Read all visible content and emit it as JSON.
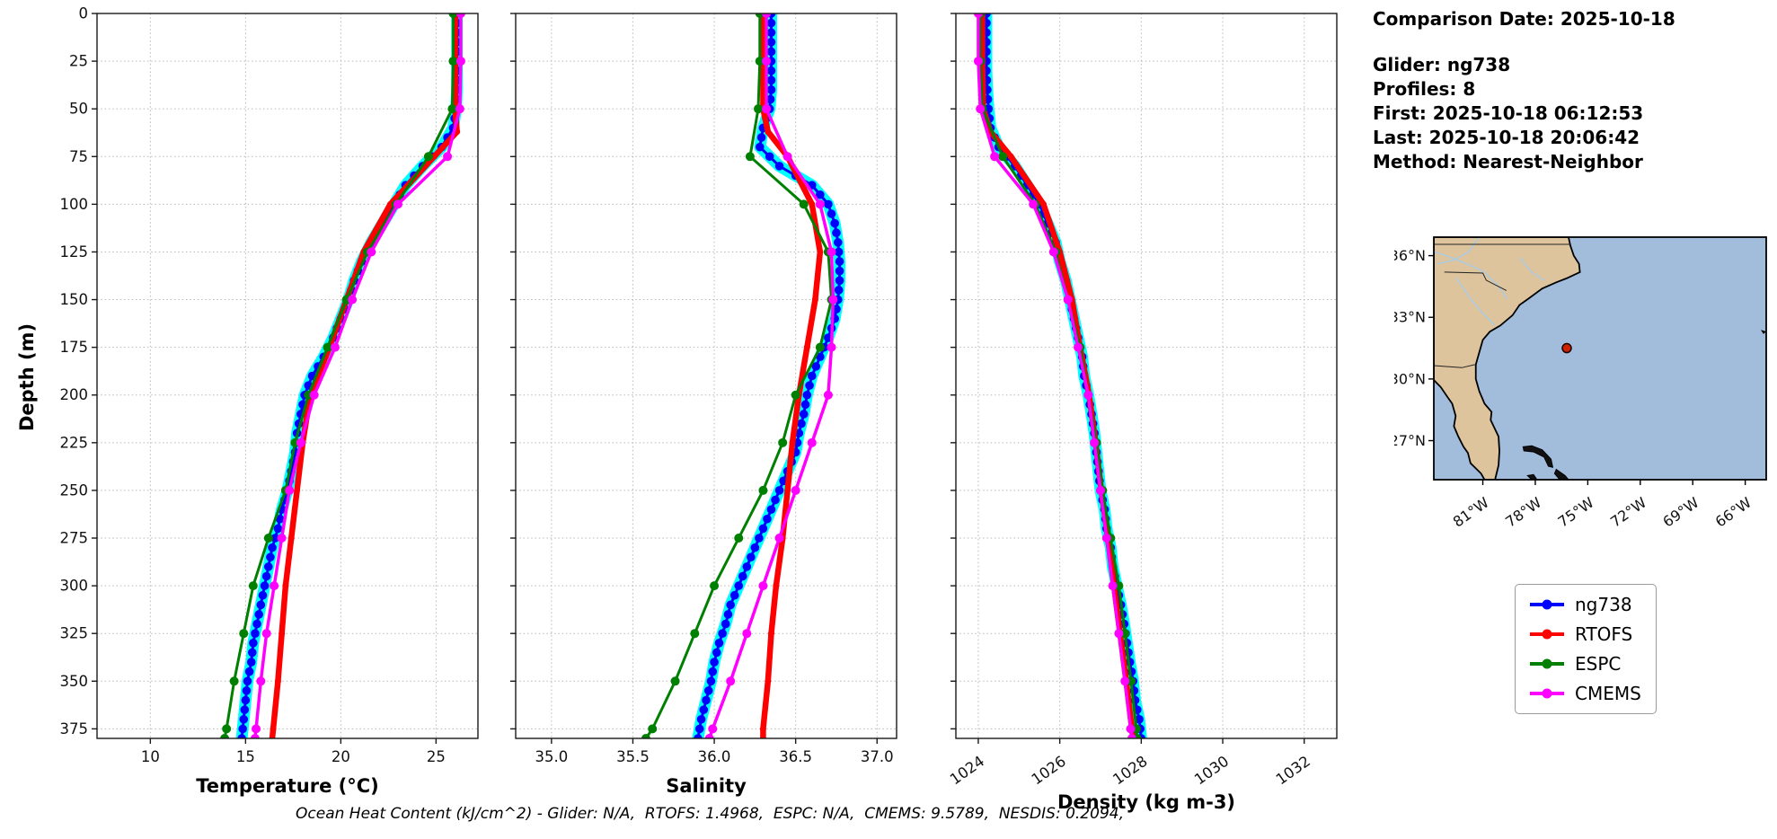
{
  "info": {
    "comparison_date": "Comparison Date: 2025-10-18",
    "glider": "Glider: ng738",
    "profiles": "Profiles: 8",
    "first": "First: 2025-10-18 06:12:53",
    "last": "Last: 2025-10-18 20:06:42",
    "method": "Method: Nearest-Neighbor"
  },
  "caption": "Ocean Heat Content (kJ/cm^2) - Glider: N/A,  RTOFS: 1.4968,  ESPC: N/A,  CMEMS: 9.5789,  NESDIS: 0.2094,",
  "legend": {
    "entries": [
      {
        "label": "ng738",
        "color": "#0000ff"
      },
      {
        "label": "RTOFS",
        "color": "#ff0000"
      },
      {
        "label": "ESPC",
        "color": "#008000"
      },
      {
        "label": "CMEMS",
        "color": "#ff00ff"
      }
    ]
  },
  "chart_data": {
    "type": "line",
    "depth_label": "Depth (m)",
    "ylim": [
      0,
      380
    ],
    "yticks": [
      0,
      25,
      50,
      75,
      100,
      125,
      150,
      175,
      200,
      225,
      250,
      275,
      300,
      325,
      350,
      375
    ],
    "ytick_labels": [
      "0",
      "25",
      "50",
      "75",
      "100",
      "125",
      "150",
      "175",
      "200",
      "225",
      "250",
      "275",
      "300",
      "325",
      "350",
      "375"
    ],
    "panels": [
      {
        "key": "temperature",
        "xlabel": "Temperature (°C)",
        "xlim": [
          7.2,
          27.2
        ],
        "xticks": [
          10,
          15,
          20,
          25
        ],
        "xtick_labels": [
          "10",
          "15",
          "20",
          "25"
        ],
        "rotate_xticklabels": false
      },
      {
        "key": "salinity",
        "xlabel": "Salinity",
        "xlim": [
          34.78,
          37.12
        ],
        "xticks": [
          35.0,
          35.5,
          36.0,
          36.5,
          37.0
        ],
        "xtick_labels": [
          "35.0",
          "35.5",
          "36.0",
          "36.5",
          "37.0"
        ],
        "rotate_xticklabels": false
      },
      {
        "key": "density",
        "xlabel": "Density (kg m-3)",
        "xlim": [
          1023.45,
          1032.8
        ],
        "xticks": [
          1024,
          1026,
          1028,
          1030,
          1032
        ],
        "xtick_labels": [
          "1024",
          "1026",
          "1028",
          "1030",
          "1032"
        ],
        "rotate_xticklabels": true
      }
    ],
    "draw_order": [
      "glider-raw",
      "ng738",
      "RTOFS",
      "ESPC",
      "CMEMS"
    ],
    "series": [
      {
        "name": "glider-raw",
        "color": "#00ffff",
        "lw": 13,
        "marker": 0,
        "dense_markers": false,
        "depths": [
          0,
          10,
          20,
          30,
          40,
          50,
          60,
          70,
          80,
          90,
          100,
          110,
          120,
          130,
          140,
          150,
          160,
          170,
          180,
          190,
          200,
          210,
          220,
          230,
          240,
          250,
          260,
          270,
          280,
          290,
          300,
          310,
          320,
          330,
          340,
          350,
          360,
          370,
          380
        ],
        "temperature": [
          26.1,
          26.1,
          26.1,
          26.1,
          26.1,
          26.05,
          25.9,
          25.3,
          24.3,
          23.4,
          22.8,
          22.2,
          21.6,
          21.1,
          20.7,
          20.4,
          20.0,
          19.6,
          19.1,
          18.5,
          18.1,
          17.9,
          17.7,
          17.6,
          17.4,
          17.2,
          16.9,
          16.7,
          16.4,
          16.2,
          16.0,
          15.8,
          15.6,
          15.4,
          15.3,
          15.1,
          15.0,
          14.9,
          14.8
        ],
        "salinity": [
          36.35,
          36.35,
          36.35,
          36.35,
          36.35,
          36.34,
          36.3,
          36.28,
          36.4,
          36.6,
          36.7,
          36.74,
          36.76,
          36.77,
          36.77,
          36.76,
          36.74,
          36.7,
          36.65,
          36.6,
          36.57,
          36.55,
          36.52,
          36.5,
          36.45,
          36.4,
          36.35,
          36.3,
          36.25,
          36.2,
          36.15,
          36.1,
          36.07,
          36.03,
          36.0,
          35.98,
          35.95,
          35.92,
          35.9
        ],
        "density": [
          1024.2,
          1024.2,
          1024.2,
          1024.2,
          1024.22,
          1024.25,
          1024.3,
          1024.5,
          1024.9,
          1025.2,
          1025.5,
          1025.7,
          1025.9,
          1026.0,
          1026.15,
          1026.25,
          1026.35,
          1026.45,
          1026.55,
          1026.6,
          1026.7,
          1026.78,
          1026.85,
          1026.9,
          1026.95,
          1027.0,
          1027.1,
          1027.15,
          1027.25,
          1027.3,
          1027.4,
          1027.5,
          1027.58,
          1027.65,
          1027.72,
          1027.8,
          1027.85,
          1027.95,
          1028.0
        ]
      },
      {
        "name": "ng738",
        "color": "#0000ff",
        "lw": 3,
        "marker": 4.8,
        "dense_markers": true,
        "depths": [
          0,
          10,
          20,
          30,
          40,
          50,
          60,
          70,
          80,
          90,
          100,
          110,
          120,
          130,
          140,
          150,
          160,
          170,
          180,
          190,
          200,
          210,
          220,
          230,
          240,
          250,
          260,
          270,
          280,
          290,
          300,
          310,
          320,
          330,
          340,
          350,
          360,
          370,
          380
        ],
        "temperature": [
          26.1,
          26.1,
          26.1,
          26.1,
          26.1,
          26.05,
          25.9,
          25.3,
          24.3,
          23.4,
          22.8,
          22.2,
          21.6,
          21.1,
          20.7,
          20.4,
          20.0,
          19.6,
          19.1,
          18.5,
          18.1,
          17.9,
          17.7,
          17.6,
          17.4,
          17.2,
          16.9,
          16.7,
          16.4,
          16.2,
          16.0,
          15.8,
          15.6,
          15.4,
          15.3,
          15.1,
          15.0,
          14.9,
          14.8
        ],
        "salinity": [
          36.35,
          36.35,
          36.35,
          36.35,
          36.35,
          36.34,
          36.3,
          36.28,
          36.4,
          36.6,
          36.7,
          36.74,
          36.76,
          36.77,
          36.77,
          36.76,
          36.74,
          36.7,
          36.65,
          36.6,
          36.57,
          36.55,
          36.52,
          36.5,
          36.45,
          36.4,
          36.35,
          36.3,
          36.25,
          36.2,
          36.15,
          36.1,
          36.07,
          36.03,
          36.0,
          35.98,
          35.95,
          35.92,
          35.9
        ],
        "density": [
          1024.2,
          1024.2,
          1024.2,
          1024.2,
          1024.22,
          1024.25,
          1024.3,
          1024.5,
          1024.9,
          1025.2,
          1025.5,
          1025.7,
          1025.9,
          1026.0,
          1026.15,
          1026.25,
          1026.35,
          1026.45,
          1026.55,
          1026.6,
          1026.7,
          1026.78,
          1026.85,
          1026.9,
          1026.95,
          1027.0,
          1027.1,
          1027.15,
          1027.25,
          1027.3,
          1027.4,
          1027.5,
          1027.58,
          1027.65,
          1027.72,
          1027.8,
          1027.85,
          1027.95,
          1028.0
        ]
      },
      {
        "name": "RTOFS",
        "color": "#ff0000",
        "lw": 6.5,
        "marker": 3.5,
        "dense_markers": false,
        "depths": [
          0,
          25,
          50,
          62,
          75,
          100,
          125,
          150,
          175,
          200,
          225,
          250,
          275,
          300,
          325,
          350,
          375,
          380
        ],
        "temperature": [
          26.0,
          26.0,
          26.0,
          26.1,
          24.9,
          22.6,
          21.2,
          20.3,
          19.4,
          18.4,
          18.0,
          17.7,
          17.4,
          17.1,
          16.9,
          16.7,
          16.45,
          16.4
        ],
        "salinity": [
          36.3,
          36.3,
          36.3,
          36.33,
          36.45,
          36.6,
          36.65,
          36.62,
          36.57,
          36.52,
          36.48,
          36.45,
          36.42,
          36.38,
          36.35,
          36.33,
          36.3,
          36.3
        ],
        "density": [
          1024.1,
          1024.1,
          1024.12,
          1024.3,
          1024.8,
          1025.6,
          1026.0,
          1026.3,
          1026.5,
          1026.72,
          1026.88,
          1027.02,
          1027.18,
          1027.33,
          1027.48,
          1027.63,
          1027.77,
          1027.8
        ]
      },
      {
        "name": "ESPC",
        "color": "#008000",
        "lw": 3,
        "marker": 5,
        "dense_markers": false,
        "depths": [
          0,
          25,
          50,
          75,
          100,
          125,
          150,
          175,
          200,
          225,
          250,
          275,
          300,
          325,
          350,
          375,
          380
        ],
        "temperature": [
          25.9,
          25.9,
          25.85,
          24.6,
          22.9,
          21.4,
          20.3,
          19.3,
          18.3,
          17.6,
          17.1,
          16.2,
          15.4,
          14.9,
          14.4,
          14.0,
          13.9
        ],
        "salinity": [
          36.28,
          36.28,
          36.27,
          36.22,
          36.55,
          36.7,
          36.72,
          36.65,
          36.5,
          36.42,
          36.3,
          36.15,
          36.0,
          35.88,
          35.76,
          35.62,
          35.58
        ],
        "density": [
          1024.05,
          1024.05,
          1024.1,
          1024.6,
          1025.4,
          1025.9,
          1026.2,
          1026.5,
          1026.7,
          1026.9,
          1027.05,
          1027.25,
          1027.45,
          1027.6,
          1027.75,
          1027.88,
          1027.9
        ]
      },
      {
        "name": "CMEMS",
        "color": "#ff00ff",
        "lw": 3.5,
        "marker": 5,
        "dense_markers": false,
        "depths": [
          0,
          25,
          50,
          75,
          100,
          125,
          150,
          175,
          200,
          225,
          250,
          275,
          300,
          325,
          350,
          375,
          380
        ],
        "temperature": [
          26.3,
          26.3,
          26.25,
          25.6,
          23.0,
          21.6,
          20.6,
          19.7,
          18.6,
          17.9,
          17.3,
          16.9,
          16.5,
          16.1,
          15.8,
          15.55,
          15.5
        ],
        "salinity": [
          36.32,
          36.32,
          36.32,
          36.45,
          36.65,
          36.72,
          36.73,
          36.72,
          36.7,
          36.6,
          36.5,
          36.4,
          36.3,
          36.2,
          36.1,
          35.99,
          35.97
        ],
        "density": [
          1024.0,
          1024.0,
          1024.05,
          1024.4,
          1025.35,
          1025.85,
          1026.2,
          1026.45,
          1026.7,
          1026.85,
          1027.0,
          1027.15,
          1027.3,
          1027.45,
          1027.6,
          1027.74,
          1027.77
        ]
      }
    ]
  },
  "map": {
    "lon_range": [
      -83.8,
      -64.8
    ],
    "lat_range": [
      25.1,
      36.9
    ],
    "lat_ticks": [
      36,
      33,
      30,
      27
    ],
    "lat_tick_labels": [
      "36°N",
      "33°N",
      "30°N",
      "27°N"
    ],
    "lon_ticks": [
      -81,
      -78,
      -75,
      -72,
      -69,
      -66
    ],
    "lon_tick_labels": [
      "81°W",
      "78°W",
      "75°W",
      "72°W",
      "69°W",
      "66°W"
    ],
    "land_color": "#ddc49c",
    "ocean_color": "#a2bcdc",
    "marker": {
      "lon": -76.2,
      "lat": 31.5,
      "color": "#cc2200"
    },
    "coast": [
      [
        -83.8,
        36.9
      ],
      [
        -76.1,
        36.9
      ],
      [
        -76.0,
        36.5
      ],
      [
        -75.8,
        36.0
      ],
      [
        -75.5,
        35.6
      ],
      [
        -75.45,
        35.2
      ],
      [
        -76.2,
        34.9
      ],
      [
        -76.8,
        34.7
      ],
      [
        -77.6,
        34.4
      ],
      [
        -78.4,
        33.9
      ],
      [
        -78.9,
        33.6
      ],
      [
        -79.3,
        33.1
      ],
      [
        -80.0,
        32.6
      ],
      [
        -80.6,
        32.3
      ],
      [
        -81.0,
        31.9
      ],
      [
        -81.2,
        31.3
      ],
      [
        -81.4,
        30.7
      ],
      [
        -81.4,
        30.0
      ],
      [
        -81.2,
        29.4
      ],
      [
        -80.9,
        28.8
      ],
      [
        -80.5,
        28.4
      ],
      [
        -80.55,
        28.0
      ],
      [
        -80.1,
        27.2
      ],
      [
        -80.05,
        26.5
      ],
      [
        -80.1,
        25.8
      ],
      [
        -80.3,
        25.1
      ],
      [
        -80.9,
        25.1
      ],
      [
        -81.1,
        25.4
      ],
      [
        -81.7,
        25.9
      ],
      [
        -81.85,
        26.4
      ],
      [
        -82.1,
        26.7
      ],
      [
        -82.4,
        27.2
      ],
      [
        -82.65,
        27.7
      ],
      [
        -82.55,
        28.2
      ],
      [
        -82.75,
        28.8
      ],
      [
        -83.0,
        29.1
      ],
      [
        -83.4,
        29.6
      ],
      [
        -83.8,
        29.95
      ]
    ],
    "islands": [
      [
        [
          -78.7,
          26.7
        ],
        [
          -78.2,
          26.75
        ],
        [
          -77.6,
          26.55
        ],
        [
          -77.1,
          26.1
        ],
        [
          -77.0,
          25.7
        ],
        [
          -77.25,
          25.75
        ],
        [
          -77.5,
          26.2
        ],
        [
          -78.1,
          26.45
        ],
        [
          -78.65,
          26.5
        ]
      ],
      [
        [
          -78.45,
          25.3
        ],
        [
          -78.2,
          25.1
        ],
        [
          -77.9,
          25.1
        ],
        [
          -78.1,
          25.35
        ]
      ],
      [
        [
          -76.8,
          25.6
        ],
        [
          -76.3,
          25.3
        ],
        [
          -76.1,
          25.1
        ],
        [
          -76.6,
          25.1
        ],
        [
          -76.9,
          25.4
        ]
      ],
      [
        [
          -65.05,
          32.35
        ],
        [
          -64.85,
          32.3
        ],
        [
          -64.95,
          32.22
        ]
      ]
    ],
    "rivers": [
      [
        [
          -81.2,
          36.9
        ],
        [
          -81.8,
          36.2
        ],
        [
          -82.6,
          35.8
        ],
        [
          -83.6,
          35.6
        ]
      ],
      [
        [
          -83.8,
          36.2
        ],
        [
          -82.8,
          35.9
        ],
        [
          -81.9,
          35.6
        ],
        [
          -80.9,
          35.2
        ],
        [
          -80.2,
          34.6
        ],
        [
          -79.6,
          33.9
        ]
      ],
      [
        [
          -82.5,
          34.9
        ],
        [
          -81.7,
          33.9
        ],
        [
          -81.0,
          33.2
        ],
        [
          -80.3,
          32.6
        ]
      ],
      [
        [
          -78.9,
          35.9
        ],
        [
          -78.2,
          35.2
        ],
        [
          -77.5,
          34.8
        ]
      ]
    ],
    "borders": [
      [
        [
          -83.8,
          36.55
        ],
        [
          -75.95,
          36.55
        ]
      ],
      [
        [
          -83.2,
          35.2
        ],
        [
          -81.0,
          35.15
        ],
        [
          -80.8,
          34.8
        ],
        [
          -79.65,
          34.3
        ]
      ],
      [
        [
          -83.8,
          30.65
        ],
        [
          -82.2,
          30.55
        ],
        [
          -81.45,
          30.7
        ]
      ]
    ]
  }
}
